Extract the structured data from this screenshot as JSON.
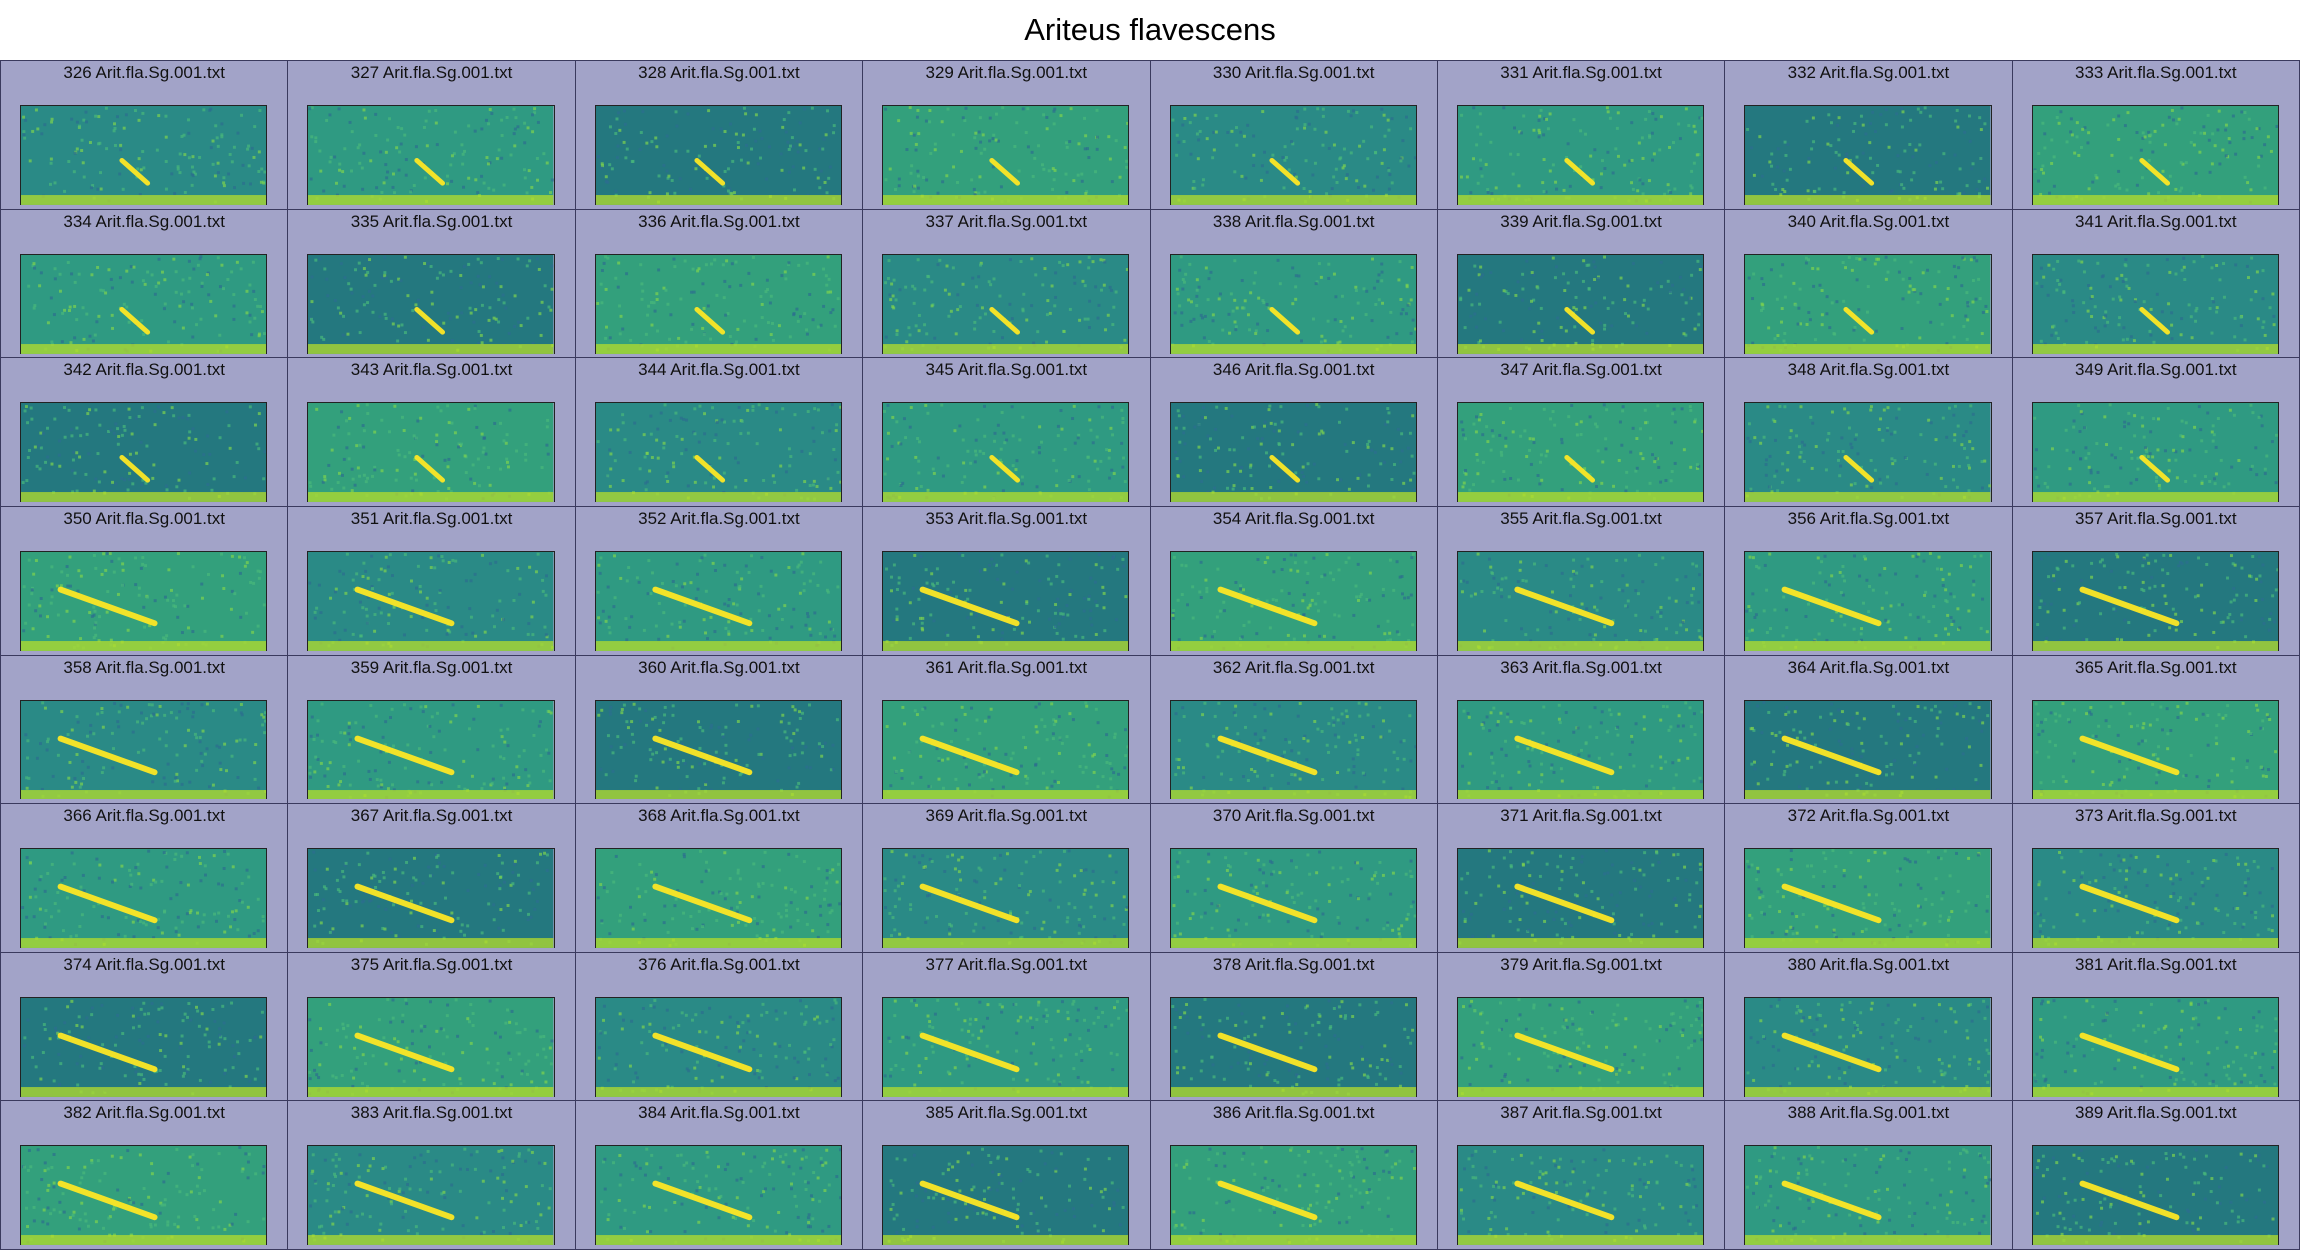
{
  "title": "Ariteus flavescens",
  "colors": {
    "cell_background": "#a2a3c8",
    "grid_lines": "#3a3a5e",
    "colormap": [
      "#440154",
      "#31688e",
      "#35b779",
      "#fde725"
    ]
  },
  "panels": [
    {
      "label": "326 Arit.fla.Sg.001.txt"
    },
    {
      "label": "327 Arit.fla.Sg.001.txt"
    },
    {
      "label": "328 Arit.fla.Sg.001.txt"
    },
    {
      "label": "329 Arit.fla.Sg.001.txt"
    },
    {
      "label": "330 Arit.fla.Sg.001.txt"
    },
    {
      "label": "331 Arit.fla.Sg.001.txt"
    },
    {
      "label": "332 Arit.fla.Sg.001.txt"
    },
    {
      "label": "333 Arit.fla.Sg.001.txt"
    },
    {
      "label": "334 Arit.fla.Sg.001.txt"
    },
    {
      "label": "335 Arit.fla.Sg.001.txt"
    },
    {
      "label": "336 Arit.fla.Sg.001.txt"
    },
    {
      "label": "337 Arit.fla.Sg.001.txt"
    },
    {
      "label": "338 Arit.fla.Sg.001.txt"
    },
    {
      "label": "339 Arit.fla.Sg.001.txt"
    },
    {
      "label": "340 Arit.fla.Sg.001.txt"
    },
    {
      "label": "341 Arit.fla.Sg.001.txt"
    },
    {
      "label": "342 Arit.fla.Sg.001.txt"
    },
    {
      "label": "343 Arit.fla.Sg.001.txt"
    },
    {
      "label": "344 Arit.fla.Sg.001.txt"
    },
    {
      "label": "345 Arit.fla.Sg.001.txt"
    },
    {
      "label": "346 Arit.fla.Sg.001.txt"
    },
    {
      "label": "347 Arit.fla.Sg.001.txt"
    },
    {
      "label": "348 Arit.fla.Sg.001.txt"
    },
    {
      "label": "349 Arit.fla.Sg.001.txt"
    },
    {
      "label": "350 Arit.fla.Sg.001.txt"
    },
    {
      "label": "351 Arit.fla.Sg.001.txt"
    },
    {
      "label": "352 Arit.fla.Sg.001.txt"
    },
    {
      "label": "353 Arit.fla.Sg.001.txt"
    },
    {
      "label": "354 Arit.fla.Sg.001.txt"
    },
    {
      "label": "355 Arit.fla.Sg.001.txt"
    },
    {
      "label": "356 Arit.fla.Sg.001.txt"
    },
    {
      "label": "357 Arit.fla.Sg.001.txt"
    },
    {
      "label": "358 Arit.fla.Sg.001.txt"
    },
    {
      "label": "359 Arit.fla.Sg.001.txt"
    },
    {
      "label": "360 Arit.fla.Sg.001.txt"
    },
    {
      "label": "361 Arit.fla.Sg.001.txt"
    },
    {
      "label": "362 Arit.fla.Sg.001.txt"
    },
    {
      "label": "363 Arit.fla.Sg.001.txt"
    },
    {
      "label": "364 Arit.fla.Sg.001.txt"
    },
    {
      "label": "365 Arit.fla.Sg.001.txt"
    },
    {
      "label": "366 Arit.fla.Sg.001.txt"
    },
    {
      "label": "367 Arit.fla.Sg.001.txt"
    },
    {
      "label": "368 Arit.fla.Sg.001.txt"
    },
    {
      "label": "369 Arit.fla.Sg.001.txt"
    },
    {
      "label": "370 Arit.fla.Sg.001.txt"
    },
    {
      "label": "371 Arit.fla.Sg.001.txt"
    },
    {
      "label": "372 Arit.fla.Sg.001.txt"
    },
    {
      "label": "373 Arit.fla.Sg.001.txt"
    },
    {
      "label": "374 Arit.fla.Sg.001.txt"
    },
    {
      "label": "375 Arit.fla.Sg.001.txt"
    },
    {
      "label": "376 Arit.fla.Sg.001.txt"
    },
    {
      "label": "377 Arit.fla.Sg.001.txt"
    },
    {
      "label": "378 Arit.fla.Sg.001.txt"
    },
    {
      "label": "379 Arit.fla.Sg.001.txt"
    },
    {
      "label": "380 Arit.fla.Sg.001.txt"
    },
    {
      "label": "381 Arit.fla.Sg.001.txt"
    },
    {
      "label": "382 Arit.fla.Sg.001.txt"
    },
    {
      "label": "383 Arit.fla.Sg.001.txt"
    },
    {
      "label": "384 Arit.fla.Sg.001.txt"
    },
    {
      "label": "385 Arit.fla.Sg.001.txt"
    },
    {
      "label": "386 Arit.fla.Sg.001.txt"
    },
    {
      "label": "387 Arit.fla.Sg.001.txt"
    },
    {
      "label": "388 Arit.fla.Sg.001.txt"
    },
    {
      "label": "389 Arit.fla.Sg.001.txt"
    }
  ]
}
